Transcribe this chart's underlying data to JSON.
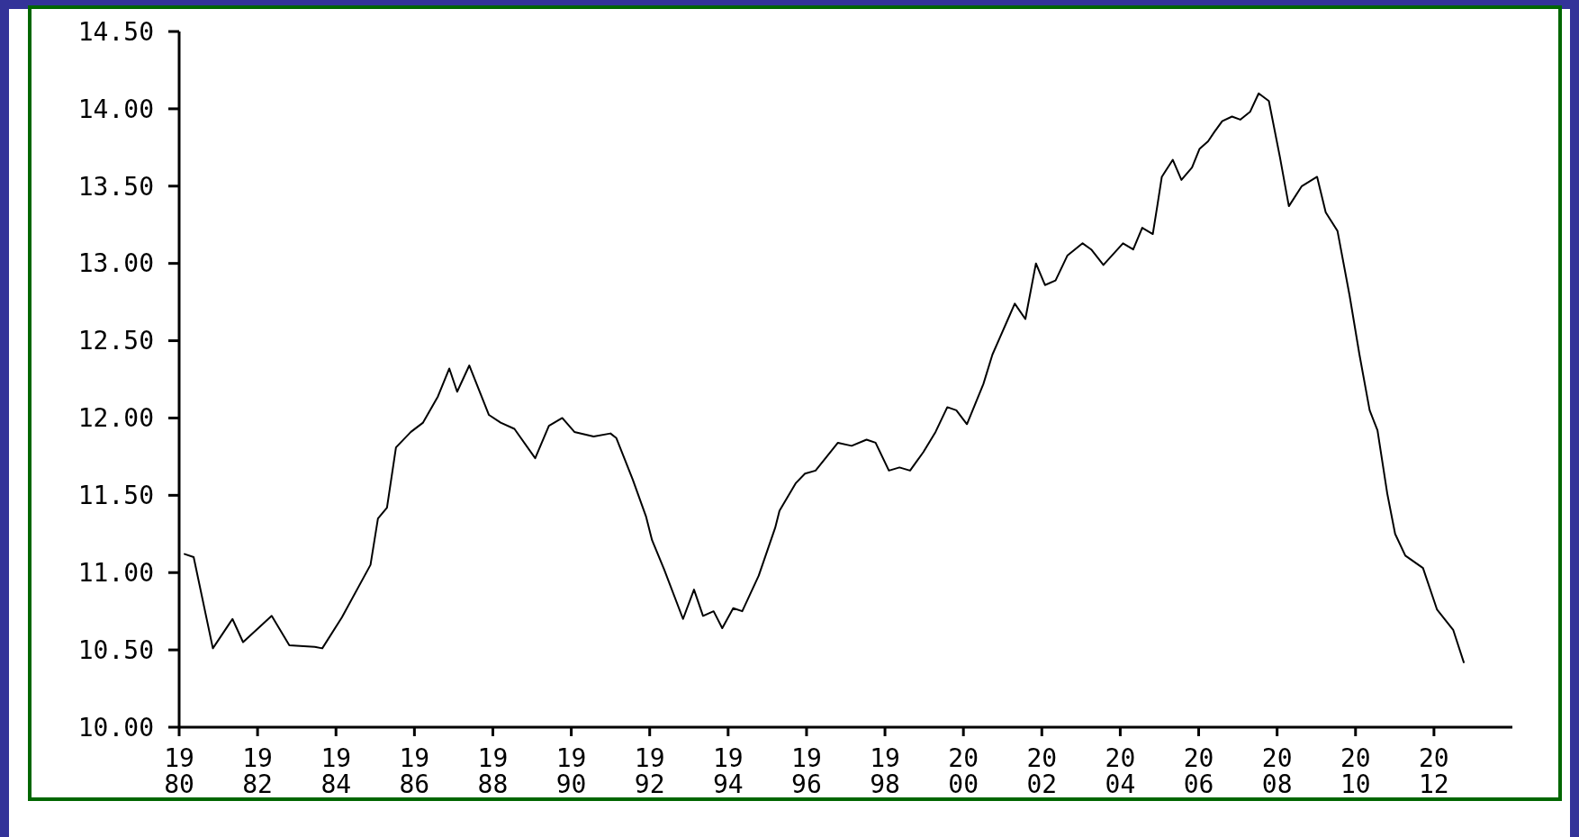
{
  "chart_data": {
    "type": "line",
    "series": [
      {
        "color": "#000000",
        "x": [
          1980.14,
          1980.37,
          1980.86,
          1981.36,
          1981.63,
          1982.36,
          1982.81,
          1983.46,
          1983.65,
          1984.15,
          1984.88,
          1985.07,
          1985.3,
          1985.53,
          1985.91,
          1986.22,
          1986.6,
          1986.89,
          1987.09,
          1987.4,
          1987.9,
          1988.2,
          1988.55,
          1989.08,
          1989.43,
          1989.77,
          1990.08,
          1990.57,
          1991.0,
          1991.15,
          1991.57,
          1991.91,
          1992.06,
          1992.37,
          1992.85,
          1993.13,
          1993.36,
          1993.63,
          1993.85,
          1994.13,
          1994.36,
          1994.78,
          1995.2,
          1995.31,
          1995.73,
          1995.96,
          1996.23,
          1996.8,
          1997.15,
          1997.53,
          1997.76,
          1998.1,
          1998.37,
          1998.64,
          1998.98,
          1999.29,
          1999.59,
          1999.82,
          2000.09,
          2000.51,
          2000.74,
          2000.93,
          2001.12,
          2001.31,
          2001.58,
          2001.85,
          2002.08,
          2002.35,
          2002.65,
          2003.04,
          2003.26,
          2003.57,
          2004.07,
          2004.33,
          2004.56,
          2004.83,
          2004.95,
          2005.06,
          2005.34,
          2005.56,
          2005.83,
          2006.02,
          2006.24,
          2006.4,
          2006.6,
          2006.85,
          2007.06,
          2007.31,
          2007.53,
          2007.79,
          2008.07,
          2008.3,
          2008.63,
          2009.02,
          2009.24,
          2009.54,
          2009.85,
          2010.1,
          2010.36,
          2010.56,
          2010.81,
          2011.01,
          2011.27,
          2011.72,
          2012.08,
          2012.49,
          2012.76
        ],
        "values": [
          11.12,
          11.1,
          10.51,
          10.7,
          10.55,
          10.72,
          10.53,
          10.52,
          10.51,
          10.71,
          11.05,
          11.35,
          11.42,
          11.81,
          11.91,
          11.97,
          12.14,
          12.32,
          12.17,
          12.34,
          12.02,
          11.97,
          11.93,
          11.74,
          11.95,
          12.0,
          11.91,
          11.88,
          11.9,
          11.87,
          11.6,
          11.36,
          11.21,
          11.02,
          10.7,
          10.89,
          10.72,
          10.75,
          10.64,
          10.77,
          10.75,
          10.98,
          11.29,
          11.4,
          11.58,
          11.64,
          11.66,
          11.84,
          11.82,
          11.86,
          11.84,
          11.66,
          11.68,
          11.66,
          11.78,
          11.91,
          12.07,
          12.05,
          11.96,
          12.22,
          12.41,
          12.52,
          12.63,
          12.74,
          12.64,
          13.0,
          12.86,
          12.89,
          13.05,
          13.13,
          13.09,
          12.99,
          13.13,
          13.09,
          13.23,
          13.19,
          13.38,
          13.56,
          13.67,
          13.54,
          13.62,
          13.74,
          13.79,
          13.85,
          13.92,
          13.95,
          13.93,
          13.98,
          14.1,
          14.05,
          13.69,
          13.37,
          13.5,
          13.56,
          13.33,
          13.21,
          12.79,
          12.41,
          12.05,
          11.92,
          11.51,
          11.25,
          11.11,
          11.03,
          10.76,
          10.63,
          10.42
        ]
      }
    ],
    "xlim": [
      1980,
      2014
    ],
    "xticks": [
      {
        "value": 1980,
        "label": "1980"
      },
      {
        "value": 1982,
        "label": "1982"
      },
      {
        "value": 1984,
        "label": "1984"
      },
      {
        "value": 1986,
        "label": "1986"
      },
      {
        "value": 1988,
        "label": "1988"
      },
      {
        "value": 1990,
        "label": "1990"
      },
      {
        "value": 1992,
        "label": "1992"
      },
      {
        "value": 1994,
        "label": "1994"
      },
      {
        "value": 1996,
        "label": "1996"
      },
      {
        "value": 1998,
        "label": "1998"
      },
      {
        "value": 2000,
        "label": "2000"
      },
      {
        "value": 2002,
        "label": "2002"
      },
      {
        "value": 2004,
        "label": "2004"
      },
      {
        "value": 2006,
        "label": "2006"
      },
      {
        "value": 2008,
        "label": "2008"
      },
      {
        "value": 2010,
        "label": "2010"
      },
      {
        "value": 2012,
        "label": "2012"
      }
    ],
    "ylim": [
      10,
      14.5
    ],
    "yticks": [
      {
        "value": 10,
        "label": "10.00"
      },
      {
        "value": 10.5,
        "label": "10.50"
      },
      {
        "value": 11,
        "label": "11.00"
      },
      {
        "value": 11.5,
        "label": "11.50"
      },
      {
        "value": 12,
        "label": "12.00"
      },
      {
        "value": 12.5,
        "label": "12.50"
      },
      {
        "value": 13,
        "label": "13.00"
      },
      {
        "value": 13.5,
        "label": "13.50"
      },
      {
        "value": 14,
        "label": "14.00"
      },
      {
        "value": 14.5,
        "label": "14.50"
      }
    ],
    "grid": false,
    "marker": "none",
    "line_style": "solid"
  }
}
